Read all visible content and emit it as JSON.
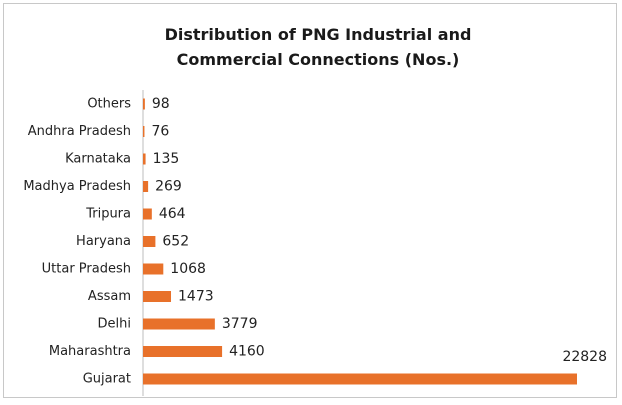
{
  "chart_data": {
    "type": "bar",
    "orientation": "horizontal",
    "title": "Distribution of PNG Industrial and Commercial Connections (Nos.)",
    "categories": [
      "Others",
      "Andhra Pradesh",
      "Karnataka",
      "Madhya Pradesh",
      "Tripura",
      "Haryana",
      "Uttar Pradesh",
      "Assam",
      "Delhi",
      "Maharashtra",
      "Gujarat"
    ],
    "values": [
      98,
      76,
      135,
      269,
      464,
      652,
      1068,
      1473,
      3779,
      4160,
      22828
    ],
    "color": "#e8712a"
  }
}
